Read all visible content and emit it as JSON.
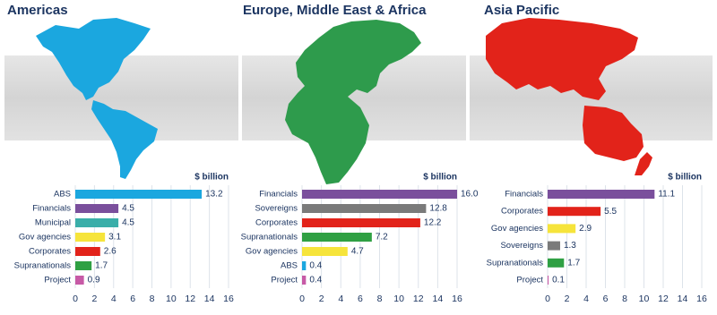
{
  "chart_data": [
    {
      "type": "bar",
      "orientation": "horizontal",
      "title": "Americas",
      "xlabel": "$ billion",
      "categories": [
        "ABS",
        "Financials",
        "Municipal",
        "Gov agencies",
        "Corporates",
        "Supranationals",
        "Project"
      ],
      "values": [
        13.2,
        4.5,
        4.5,
        3.1,
        2.6,
        1.7,
        0.9
      ],
      "colors": [
        "#1ba7df",
        "#7a4f9c",
        "#3aaea9",
        "#f6e43b",
        "#e2231a",
        "#2fa043",
        "#c75aa6"
      ],
      "xlim": [
        0,
        16
      ],
      "xticks": [
        0,
        2,
        4,
        6,
        8,
        10,
        12,
        14,
        16
      ],
      "grid": true
    },
    {
      "type": "bar",
      "orientation": "horizontal",
      "title": "Europe, Middle East & Africa",
      "xlabel": "$ billion",
      "categories": [
        "Financials",
        "Sovereigns",
        "Corporates",
        "Supranationals",
        "Gov agencies",
        "ABS",
        "Project"
      ],
      "values": [
        16.0,
        12.8,
        12.2,
        7.2,
        4.7,
        0.4,
        0.4
      ],
      "value_labels": [
        "16.0",
        "12.8",
        "12.2",
        "7.2",
        "4.7",
        "0.4",
        "0.4"
      ],
      "colors": [
        "#7a4f9c",
        "#7a7a7a",
        "#e2231a",
        "#2fa043",
        "#f6e43b",
        "#1ba7df",
        "#c75aa6"
      ],
      "xlim": [
        0,
        16
      ],
      "xticks": [
        0,
        2,
        4,
        6,
        8,
        10,
        12,
        14,
        16
      ],
      "grid": true
    },
    {
      "type": "bar",
      "orientation": "horizontal",
      "title": "Asia Pacific",
      "xlabel": "$ billion",
      "categories": [
        "Financials",
        "Corporates",
        "Gov agencies",
        "Sovereigns",
        "Supranationals",
        "Project"
      ],
      "values": [
        11.1,
        5.5,
        2.9,
        1.3,
        1.7,
        0.1
      ],
      "colors": [
        "#7a4f9c",
        "#e2231a",
        "#f6e43b",
        "#7a7a7a",
        "#2fa043",
        "#c75aa6"
      ],
      "xlim": [
        0,
        16
      ],
      "xticks": [
        0,
        2,
        4,
        6,
        8,
        10,
        12,
        14,
        16
      ],
      "grid": true
    }
  ]
}
